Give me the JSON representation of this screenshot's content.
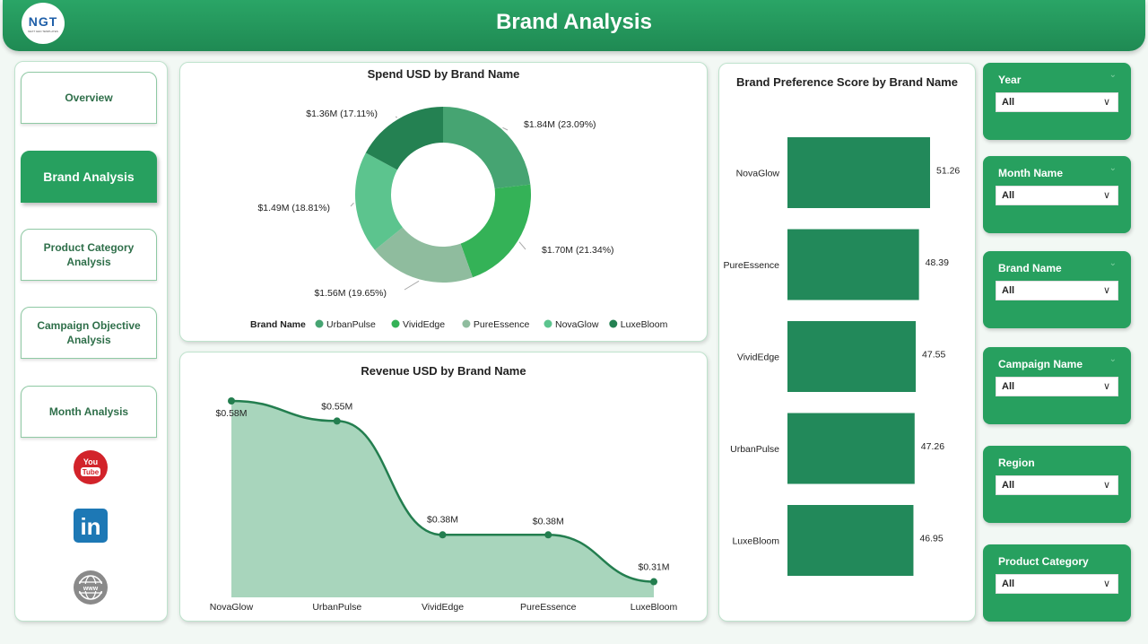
{
  "header": {
    "title": "Brand Analysis",
    "logo_text": "NGT",
    "logo_subtext": "NEXT GEN TEMPLATES"
  },
  "nav": {
    "items": [
      {
        "label": "Overview"
      },
      {
        "label": "Brand Analysis",
        "active": true
      },
      {
        "label": "Product Category Analysis"
      },
      {
        "label": "Campaign Objective Analysis"
      },
      {
        "label": "Month Analysis"
      }
    ],
    "social_icons": [
      "youtube-icon",
      "linkedin-icon",
      "website-icon"
    ],
    "youtube_text": [
      "You",
      "Tube"
    ],
    "linkedin_text": "in",
    "website_text": "www"
  },
  "colors": {
    "primary": "#27a05f",
    "dark": "#1f8a53",
    "bar": "#22895a",
    "area": "#a8d5bc"
  },
  "chart_data": [
    {
      "type": "pie",
      "title": "Spend USD by Brand Name",
      "legend_title": "Brand Name",
      "legend_position": "bottom",
      "slices": [
        {
          "name": "UrbanPulse",
          "value": 1.84,
          "label": "$1.84M (23.09%)",
          "color": "#46a472"
        },
        {
          "name": "VividEdge",
          "value": 1.7,
          "label": "$1.70M (21.34%)",
          "color": "#34b257"
        },
        {
          "name": "PureEssence",
          "value": 1.56,
          "label": "$1.56M (19.65%)",
          "color": "#8fbc9e"
        },
        {
          "name": "NovaGlow",
          "value": 1.49,
          "label": "$1.49M (18.81%)",
          "color": "#5cc48e"
        },
        {
          "name": "LuxeBloom",
          "value": 1.36,
          "label": "$1.36M (17.11%)",
          "color": "#248152"
        }
      ]
    },
    {
      "type": "area",
      "title": "Revenue USD by Brand Name",
      "categories": [
        "NovaGlow",
        "UrbanPulse",
        "VividEdge",
        "PureEssence",
        "LuxeBloom"
      ],
      "values": [
        0.58,
        0.55,
        0.38,
        0.38,
        0.31
      ],
      "labels": [
        "$0.58M",
        "$0.55M",
        "$0.38M",
        "$0.38M",
        "$0.31M"
      ],
      "ylim": [
        0.3,
        0.58
      ]
    },
    {
      "type": "bar",
      "orientation": "horizontal",
      "title": "Brand Preference Score by Brand Name",
      "categories": [
        "NovaGlow",
        "PureEssence",
        "VividEdge",
        "UrbanPulse",
        "LuxeBloom"
      ],
      "values": [
        51.26,
        48.39,
        47.55,
        47.26,
        46.95
      ],
      "labels": [
        "51.26",
        "48.39",
        "47.55",
        "47.26",
        "46.95"
      ],
      "xlim": [
        0,
        51.26
      ]
    }
  ],
  "slicers": [
    {
      "label": "Year",
      "value": "All"
    },
    {
      "label": "Month Name",
      "value": "All"
    },
    {
      "label": "Brand Name",
      "value": "All"
    },
    {
      "label": "Campaign Name",
      "value": "All"
    },
    {
      "label": "Region",
      "value": "All"
    },
    {
      "label": "Product Category",
      "value": "All"
    }
  ]
}
